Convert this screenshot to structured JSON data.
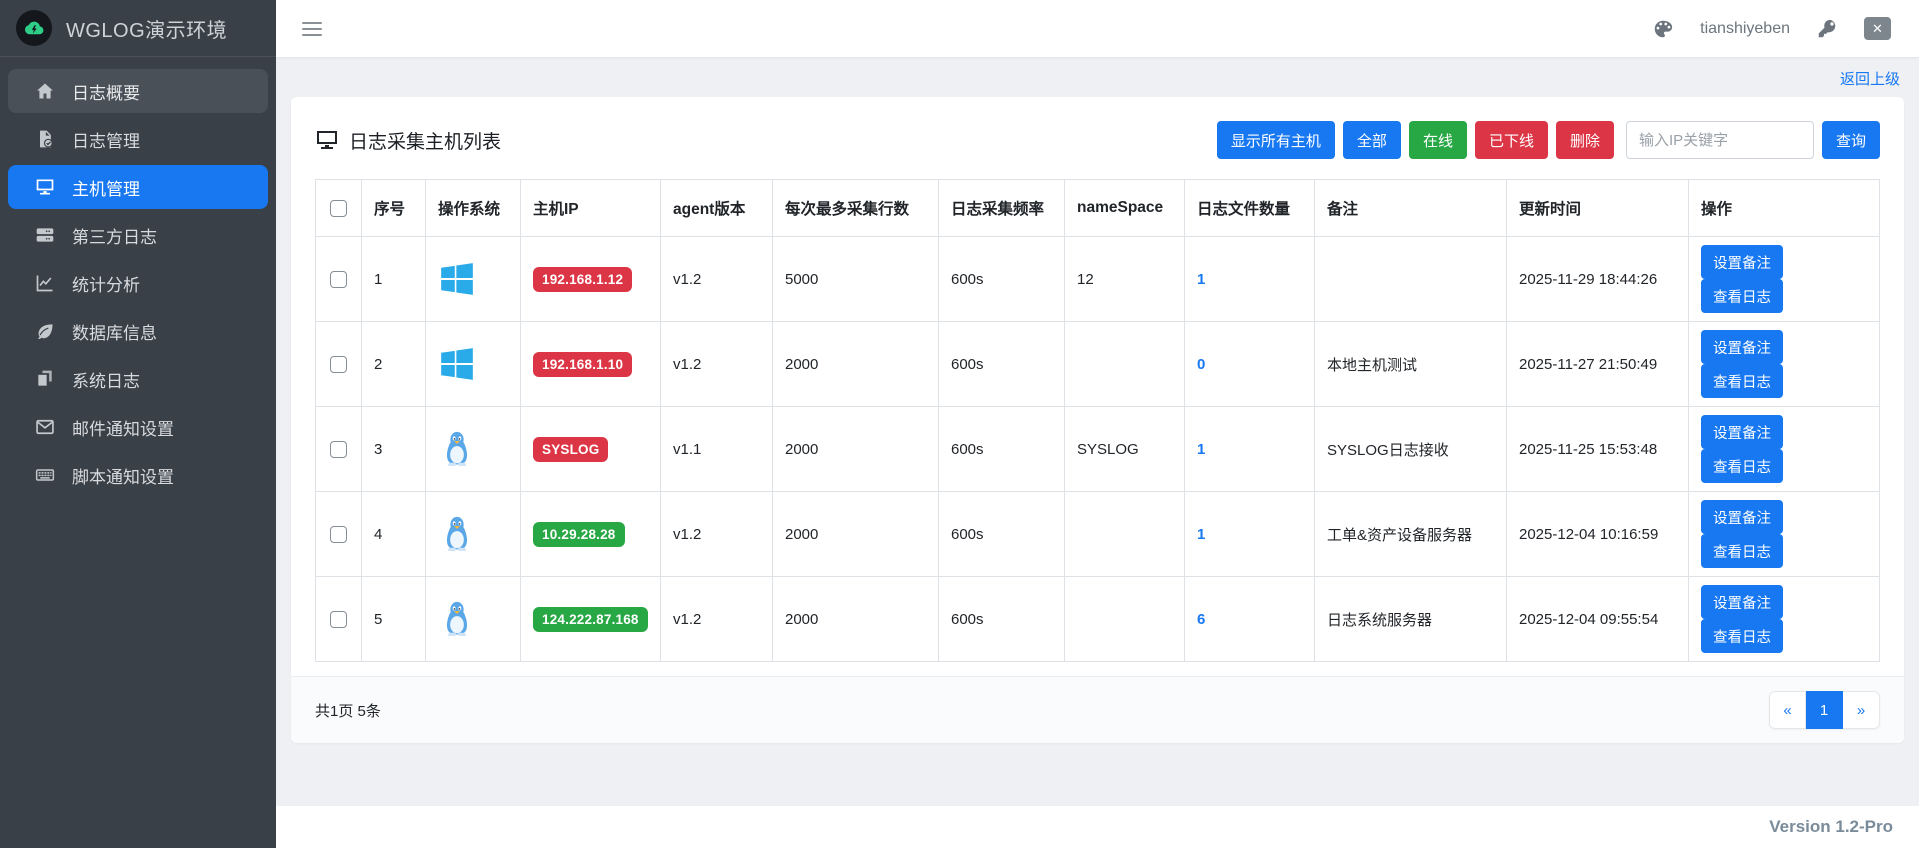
{
  "app": {
    "title": "WGLOG演示环境"
  },
  "header": {
    "username": "tianshiyeben",
    "icons": [
      "palette-icon",
      "key-icon",
      "logout-icon"
    ]
  },
  "sidebar": {
    "items": [
      {
        "label": "日志概要",
        "icon": "home",
        "state": "highlight"
      },
      {
        "label": "日志管理",
        "icon": "file-check",
        "state": ""
      },
      {
        "label": "主机管理",
        "icon": "monitor",
        "state": "active"
      },
      {
        "label": "第三方日志",
        "icon": "server",
        "state": ""
      },
      {
        "label": "统计分析",
        "icon": "chart-line",
        "state": ""
      },
      {
        "label": "数据库信息",
        "icon": "leaf",
        "state": ""
      },
      {
        "label": "系统日志",
        "icon": "copy",
        "state": ""
      },
      {
        "label": "邮件通知设置",
        "icon": "mail",
        "state": ""
      },
      {
        "label": "脚本通知设置",
        "icon": "keyboard",
        "state": ""
      }
    ]
  },
  "breadcrumb": {
    "back": "返回上级"
  },
  "card": {
    "title": "日志采集主机列表",
    "toolbar": {
      "buttons": [
        {
          "label": "显示所有主机",
          "color": "blue"
        },
        {
          "label": "全部",
          "color": "blue"
        },
        {
          "label": "在线",
          "color": "green"
        },
        {
          "label": "已下线",
          "color": "red"
        },
        {
          "label": "删除",
          "color": "red"
        }
      ],
      "search_placeholder": "输入IP关键字",
      "search_value": "",
      "search_button": "查询"
    },
    "table": {
      "headers": [
        "序号",
        "操作系统",
        "主机IP",
        "agent版本",
        "每次最多采集行数",
        "日志采集频率",
        "nameSpace",
        "日志文件数量",
        "备注",
        "更新时间",
        "操作"
      ],
      "row_actions": [
        "设置备注",
        "查看日志"
      ],
      "rows": [
        {
          "index": "1",
          "os": "windows",
          "ip": "192.168.1.12",
          "ip_color": "red",
          "agent": "v1.2",
          "max_lines": "5000",
          "freq": "600s",
          "namespace": "12",
          "file_count": "1",
          "remark": "",
          "updated": "2025-11-29 18:44:26"
        },
        {
          "index": "2",
          "os": "windows",
          "ip": "192.168.1.10",
          "ip_color": "red",
          "agent": "v1.2",
          "max_lines": "2000",
          "freq": "600s",
          "namespace": "",
          "file_count": "0",
          "remark": "本地主机测试",
          "updated": "2025-11-27 21:50:49"
        },
        {
          "index": "3",
          "os": "linux",
          "ip": "SYSLOG",
          "ip_color": "red",
          "agent": "v1.1",
          "max_lines": "2000",
          "freq": "600s",
          "namespace": "SYSLOG",
          "file_count": "1",
          "remark": "SYSLOG日志接收",
          "updated": "2025-11-25 15:53:48"
        },
        {
          "index": "4",
          "os": "linux",
          "ip": "10.29.28.28",
          "ip_color": "green",
          "agent": "v1.2",
          "max_lines": "2000",
          "freq": "600s",
          "namespace": "",
          "file_count": "1",
          "remark": "工单&资产设备服务器",
          "updated": "2025-12-04 10:16:59"
        },
        {
          "index": "5",
          "os": "linux",
          "ip": "124.222.87.168",
          "ip_color": "green",
          "agent": "v1.2",
          "max_lines": "2000",
          "freq": "600s",
          "namespace": "",
          "file_count": "6",
          "remark": "日志系统服务器",
          "updated": "2025-12-04 09:55:54"
        }
      ]
    },
    "footer": {
      "summary": "共1页 5条",
      "pagination": [
        "«",
        "1",
        "»"
      ],
      "active_page": "1"
    }
  },
  "footer": {
    "version": "Version 1.2-Pro"
  },
  "colors": {
    "primary_blue": "#1778f2",
    "success_green": "#28a745",
    "danger_red": "#dc3545",
    "sidebar_bg": "#3a4047",
    "windows_logo": "#29abe9"
  }
}
